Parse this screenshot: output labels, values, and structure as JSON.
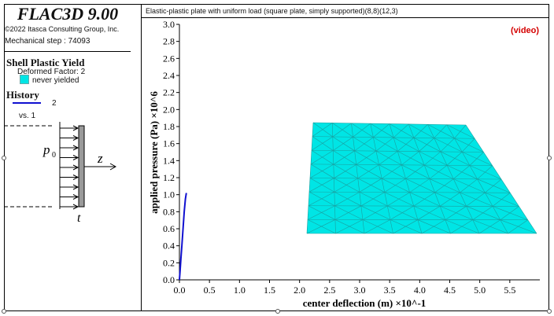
{
  "app": {
    "title": "FLAC3D 9.00",
    "copyright": "©2022 Itasca Consulting Group, Inc.",
    "step": "Mechanical step : 74093"
  },
  "legend": {
    "plot_title": "Shell Plastic Yield",
    "deformed_factor": "Deformed Factor: 2",
    "state_label": "never yielded",
    "state_color": "#00e5e5",
    "history_title": "History",
    "history_id": "2",
    "history_vs": "vs. 1",
    "history_color": "#1010d0"
  },
  "schematic": {
    "load_label": "p",
    "load_sub": "0",
    "axis_label": "z",
    "thickness_label": "t"
  },
  "header": {
    "chart_title": "Elastic-plastic plate with uniform load (square plate, simply supported)(8,8)(12,3)",
    "video_label": "(video)"
  },
  "chart_data": {
    "type": "line",
    "xlabel": "center deflection (m) ×10^-1",
    "ylabel": "applied pressure (Pa) ×10^6",
    "xlim": [
      0,
      6
    ],
    "ylim": [
      0,
      3
    ],
    "xticks": [
      "0.0",
      "0.5",
      "1.0",
      "1.5",
      "2.0",
      "2.5",
      "3.0",
      "3.5",
      "4.0",
      "4.5",
      "5.0",
      "5.5"
    ],
    "yticks": [
      "0.0",
      "0.2",
      "0.4",
      "0.6",
      "0.8",
      "1.0",
      "1.2",
      "1.4",
      "1.6",
      "1.8",
      "2.0",
      "2.2",
      "2.4",
      "2.6",
      "2.8",
      "3.0"
    ],
    "series": [
      {
        "name": "2",
        "x": [
          0,
          0.01,
          0.025,
          0.04,
          0.06,
          0.08,
          0.1,
          0.115
        ],
        "y": [
          0,
          0.1,
          0.25,
          0.4,
          0.6,
          0.8,
          0.95,
          1.02
        ]
      }
    ]
  }
}
